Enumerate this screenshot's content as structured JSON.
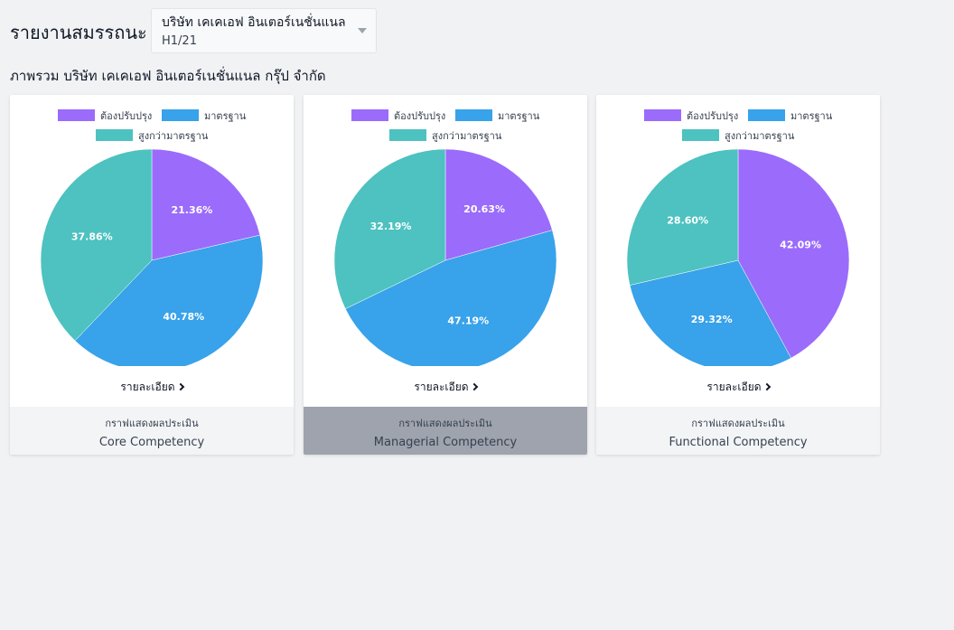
{
  "header": {
    "title": "รายงานสมรรถนะ",
    "selector_company": "บริษัท เคเคเอฟ อินเตอร์เนชั่นแนล",
    "selector_period": "H1/21",
    "subtitle": "ภาพรวม บริษัท เคเคเอฟ อินเตอร์เนชั่นแนล กรุ๊ป จำกัด"
  },
  "colors": {
    "improve": "#9b6bfb",
    "standard": "#38a2ea",
    "above": "#4dc2c0",
    "active_footer": "#9ea3ad"
  },
  "detail_label": "รายละเอียด",
  "chart_data": [
    {
      "type": "pie",
      "labels": [
        "ต้องปรับปรุง",
        "มาตรฐาน",
        "สูงกว่ามาตรฐาน"
      ],
      "values": [
        21.36,
        40.78,
        37.86
      ],
      "value_labels": [
        "21.36%",
        "40.78%",
        "37.86%"
      ],
      "colors": [
        "#9b6bfb",
        "#38a2ea",
        "#4dc2c0"
      ],
      "legend": "top",
      "caption_small": "กราฟแสดงผลประเมิน",
      "caption": "Core Competency"
    },
    {
      "type": "pie",
      "labels": [
        "ต้องปรับปรุง",
        "มาตรฐาน",
        "สูงกว่ามาตรฐาน"
      ],
      "values": [
        20.63,
        47.19,
        32.19
      ],
      "value_labels": [
        "20.63%",
        "47.19%",
        "32.19%"
      ],
      "colors": [
        "#9b6bfb",
        "#38a2ea",
        "#4dc2c0"
      ],
      "legend": "top",
      "caption_small": "กราฟแสดงผลประเมิน",
      "caption": "Managerial Competency",
      "active": true
    },
    {
      "type": "pie",
      "labels": [
        "ต้องปรับปรุง",
        "มาตรฐาน",
        "สูงกว่ามาตรฐาน"
      ],
      "values": [
        42.09,
        29.32,
        28.6
      ],
      "value_labels": [
        "42.09%",
        "29.32%",
        "28.60%"
      ],
      "colors": [
        "#9b6bfb",
        "#38a2ea",
        "#4dc2c0"
      ],
      "legend": "top",
      "caption_small": "กราฟแสดงผลประเมิน",
      "caption": "Functional Competency"
    }
  ]
}
